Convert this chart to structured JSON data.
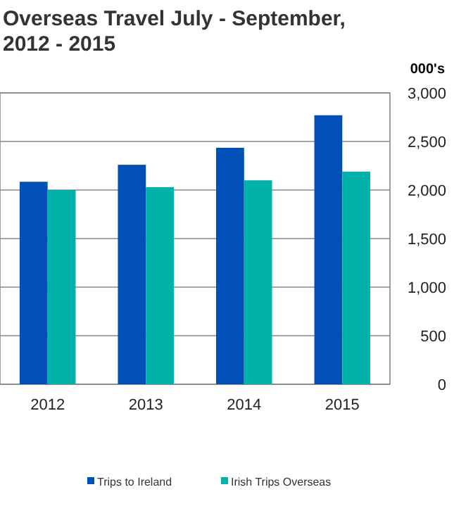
{
  "chart_data": {
    "type": "bar",
    "title": "Overseas Travel July - September, 2012 - 2015",
    "ylabel": "000's",
    "categories": [
      "2012",
      "2013",
      "2014",
      "2015"
    ],
    "series": [
      {
        "name": "Trips to Ireland",
        "color": "#0050b8",
        "values": [
          2085,
          2260,
          2435,
          2770
        ]
      },
      {
        "name": "Irish Trips Overseas",
        "color": "#00b2a9",
        "values": [
          2000,
          2030,
          2100,
          2190
        ]
      }
    ],
    "ylim": [
      0,
      3000
    ],
    "yticks": [
      0,
      {
        "value": 500,
        "label": "500"
      },
      {
        "value": 1000,
        "label": "1,000"
      },
      {
        "value": 1500,
        "label": "1,500"
      },
      {
        "value": 2000,
        "label": "2,000"
      },
      {
        "value": 2500,
        "label": "2,500"
      },
      {
        "value": 3000,
        "label": "3,000"
      }
    ],
    "grid": "y",
    "legend": "bottom"
  }
}
